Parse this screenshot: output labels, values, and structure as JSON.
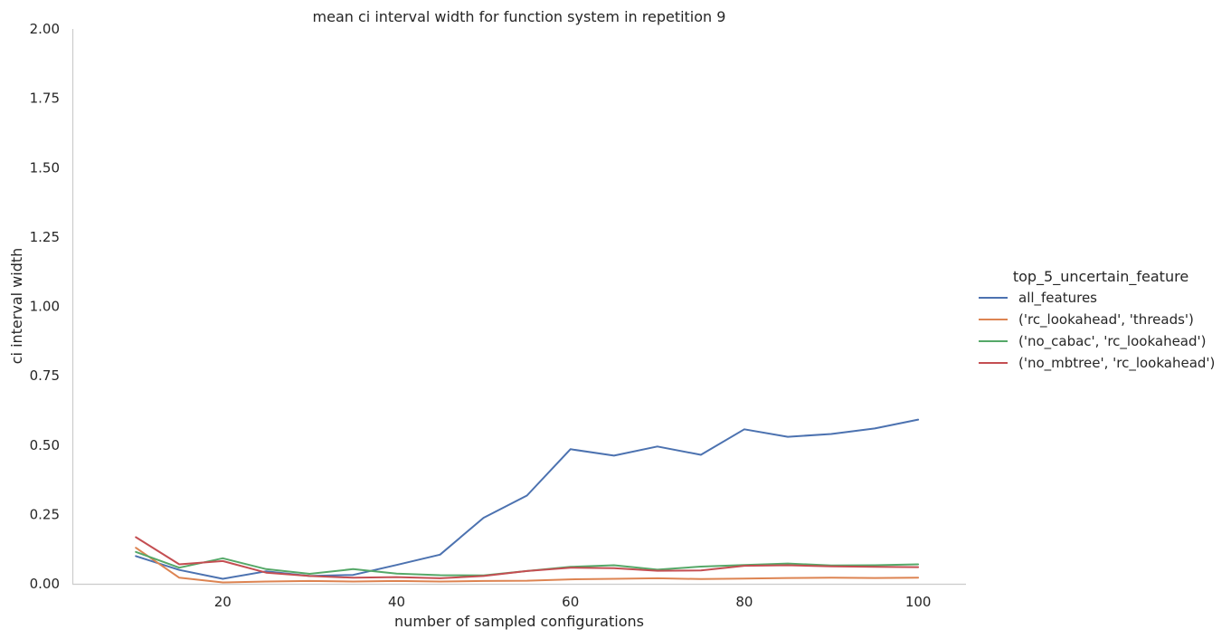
{
  "chart_data": {
    "type": "line",
    "title": "mean ci interval width for function system in repetition 9",
    "xlabel": "number of sampled configurations",
    "ylabel": "ci interval width",
    "xlim": [
      2.7,
      105.5
    ],
    "ylim": [
      0,
      2.0
    ],
    "xticks": [
      20,
      40,
      60,
      80,
      100
    ],
    "yticks": [
      "0.00",
      "0.25",
      "0.50",
      "0.75",
      "1.00",
      "1.25",
      "1.50",
      "1.75",
      "2.00"
    ],
    "grid": false,
    "legend_title": "top_5_uncertain_feature",
    "legend_position": "right",
    "x": [
      10,
      15,
      20,
      25,
      30,
      35,
      40,
      45,
      50,
      55,
      60,
      65,
      70,
      75,
      80,
      85,
      90,
      95,
      100
    ],
    "series": [
      {
        "name": "all_features",
        "color": "#4c72b0",
        "values": [
          0.1,
          0.05,
          0.018,
          0.045,
          0.028,
          0.032,
          0.068,
          0.105,
          0.238,
          0.318,
          0.485,
          0.462,
          0.495,
          0.465,
          0.557,
          0.53,
          0.54,
          0.56,
          0.592
        ]
      },
      {
        "name": "('rc_lookahead', 'threads')",
        "color": "#dd8452",
        "values": [
          0.13,
          0.022,
          0.005,
          0.008,
          0.01,
          0.008,
          0.01,
          0.008,
          0.01,
          0.011,
          0.016,
          0.018,
          0.02,
          0.017,
          0.019,
          0.021,
          0.022,
          0.021,
          0.022
        ]
      },
      {
        "name": "('no_cabac', 'rc_lookahead')",
        "color": "#55a868",
        "values": [
          0.115,
          0.058,
          0.092,
          0.053,
          0.036,
          0.053,
          0.037,
          0.031,
          0.03,
          0.046,
          0.061,
          0.067,
          0.051,
          0.062,
          0.068,
          0.073,
          0.066,
          0.067,
          0.07
        ]
      },
      {
        "name": "('no_mbtree', 'rc_lookahead')",
        "color": "#c44e52",
        "values": [
          0.168,
          0.07,
          0.082,
          0.04,
          0.028,
          0.022,
          0.024,
          0.02,
          0.028,
          0.046,
          0.058,
          0.056,
          0.047,
          0.048,
          0.065,
          0.067,
          0.063,
          0.061,
          0.06
        ]
      }
    ]
  }
}
